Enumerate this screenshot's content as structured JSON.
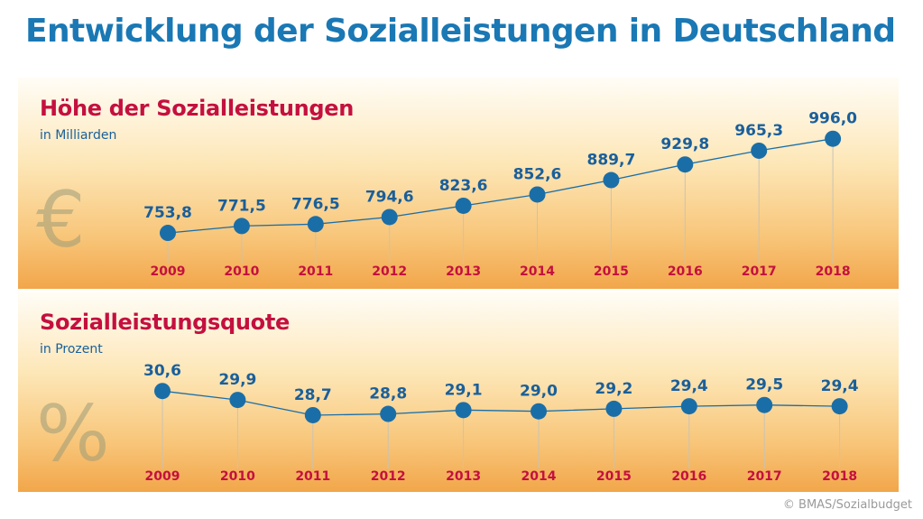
{
  "title": "Entwicklung der Sozialleistungen in Deutschland",
  "credit": "© BMAS/Sozialbudget",
  "colors": {
    "title": "#1a78b4",
    "panel_title": "#c4103f",
    "marker": "#1a6ea8",
    "value_label": "#1a5f9a",
    "year_label": "#c4103f"
  },
  "icons": {
    "euro": "euro-icon",
    "percent": "percent-icon"
  },
  "chart_data": [
    {
      "type": "line",
      "title": "Höhe der Sozialleistungen",
      "subtitle": "in Milliarden",
      "watermark": "€",
      "x": [
        "2009",
        "2010",
        "2011",
        "2012",
        "2013",
        "2014",
        "2015",
        "2016",
        "2017",
        "2018"
      ],
      "values": [
        753.8,
        771.5,
        776.5,
        794.6,
        823.6,
        852.6,
        889.7,
        929.8,
        965.3,
        996.0
      ],
      "labels": [
        "753,8",
        "771,5",
        "776,5",
        "794,6",
        "823,6",
        "852,6",
        "889,7",
        "929,8",
        "965,3",
        "996,0"
      ],
      "ylim": [
        740,
        1000
      ],
      "grid": false,
      "legend": "none"
    },
    {
      "type": "line",
      "title": "Sozialleistungsquote",
      "subtitle": "in Prozent",
      "watermark": "%",
      "x": [
        "2009",
        "2010",
        "2011",
        "2012",
        "2013",
        "2014",
        "2015",
        "2016",
        "2017",
        "2018"
      ],
      "values": [
        30.6,
        29.9,
        28.7,
        28.8,
        29.1,
        29.0,
        29.2,
        29.4,
        29.5,
        29.4
      ],
      "labels": [
        "30,6",
        "29,9",
        "28,7",
        "28,8",
        "29,1",
        "29,0",
        "29,2",
        "29,4",
        "29,5",
        "29,4"
      ],
      "ylim": [
        28.2,
        30.9
      ],
      "grid": false,
      "legend": "none"
    }
  ]
}
